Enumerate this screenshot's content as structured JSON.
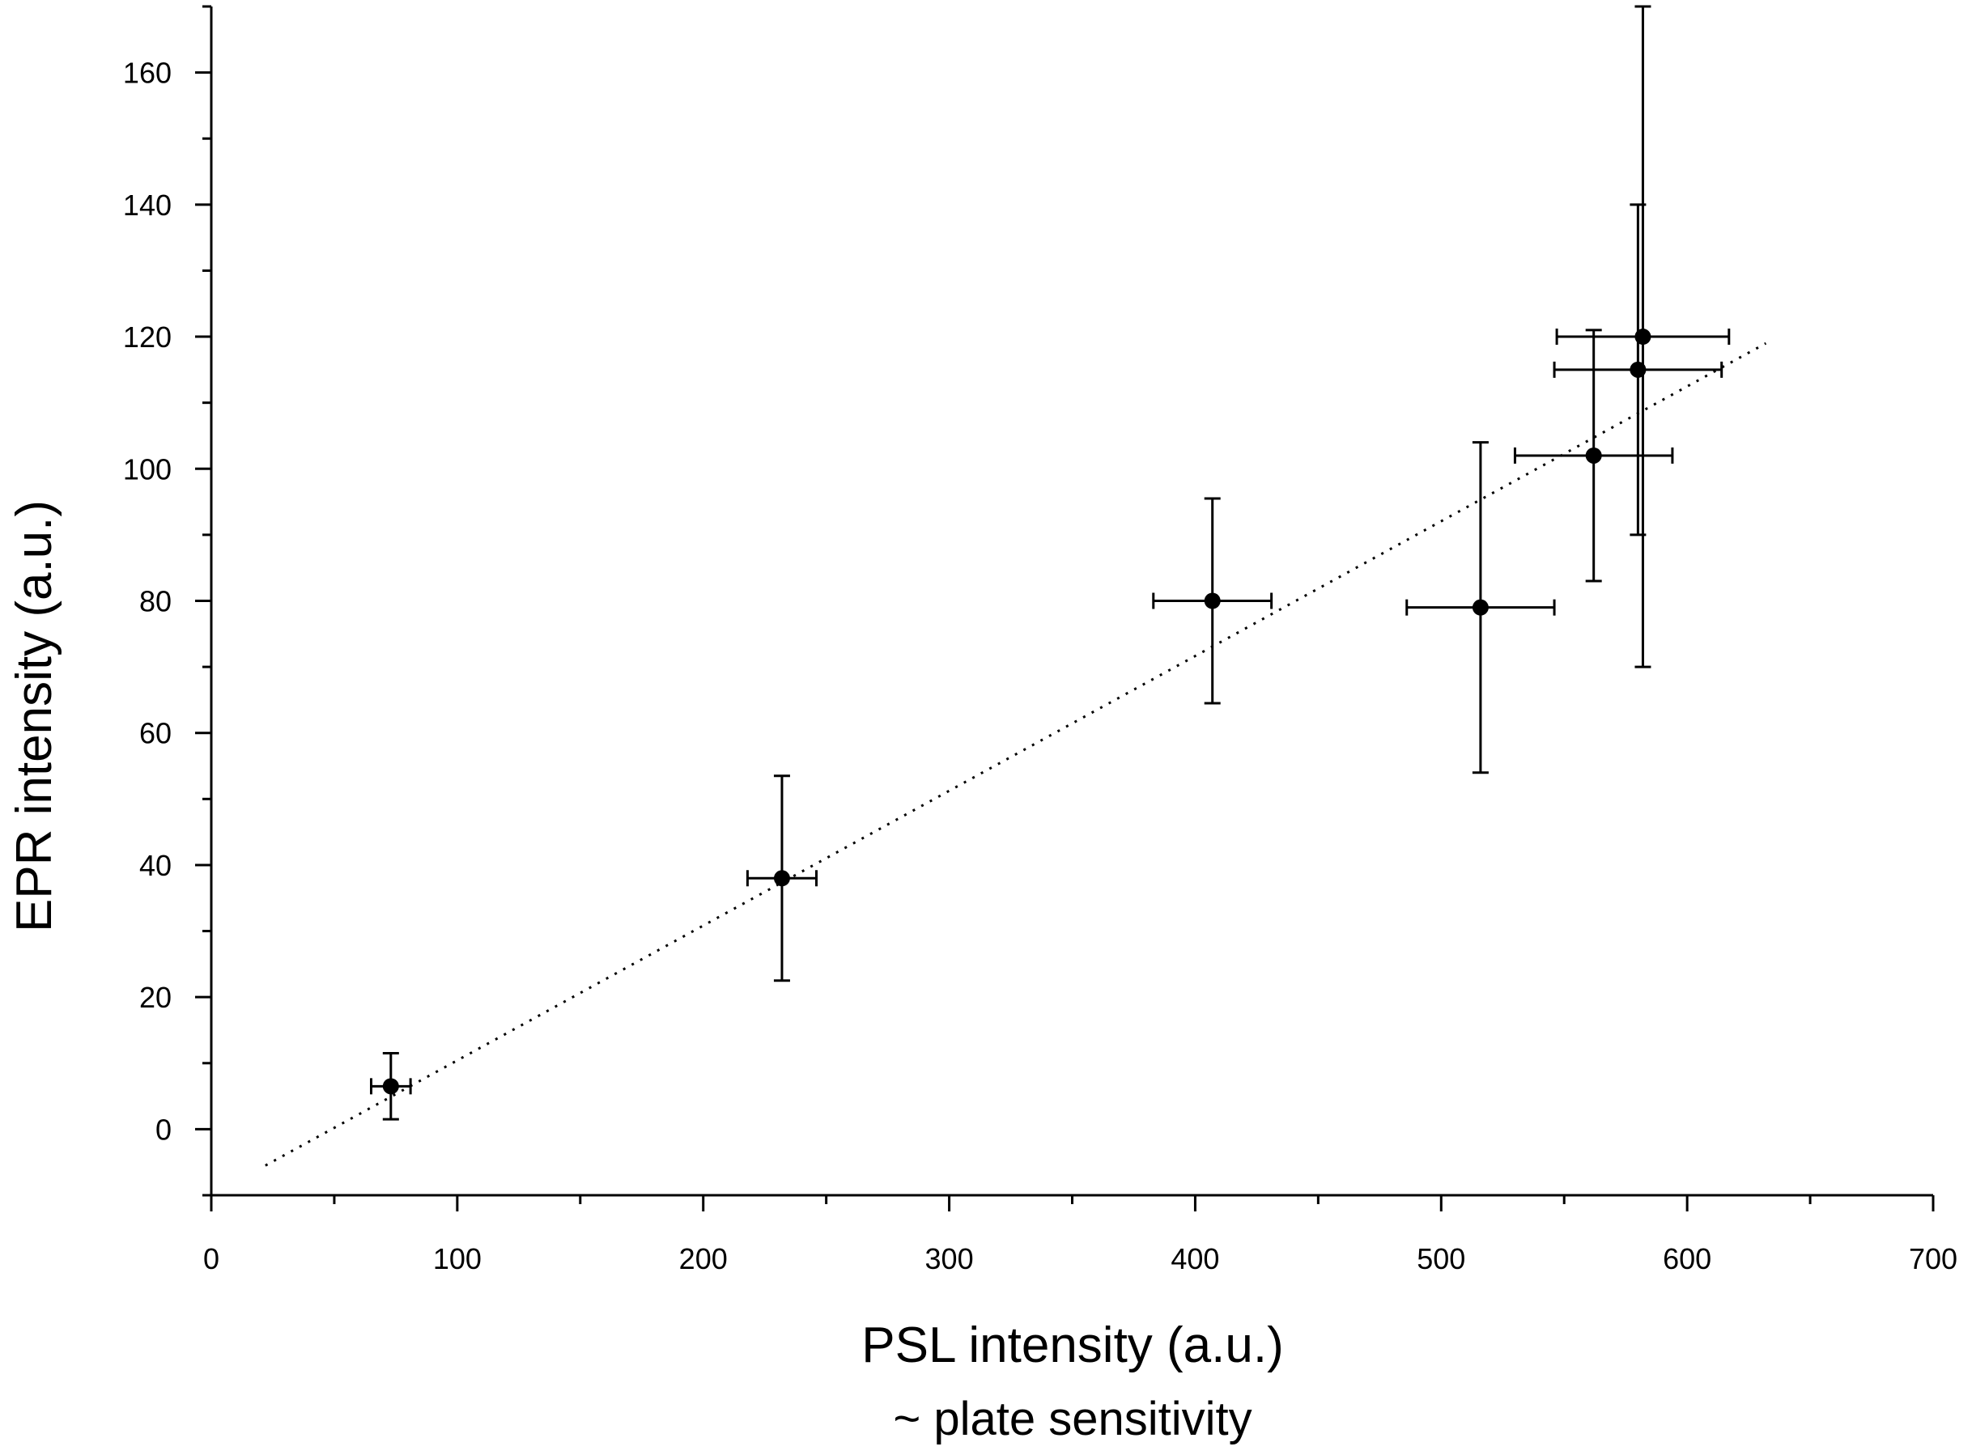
{
  "chart_data": {
    "type": "scatter",
    "title": "",
    "xlabel": "PSL intensity (a.u.)",
    "xlabel_sub": "~ plate sensitivity",
    "ylabel": "EPR intensity (a.u.)",
    "xlim": [
      0,
      700
    ],
    "ylim": [
      -10,
      170
    ],
    "x_ticks": [
      0,
      100,
      200,
      300,
      400,
      500,
      600,
      700
    ],
    "x_tick_labels": [
      "0",
      "100",
      "200",
      "300",
      "400",
      "500",
      "600",
      "700"
    ],
    "x_minor_ticks": [
      50,
      150,
      250,
      350,
      450,
      550,
      650
    ],
    "y_ticks": [
      0,
      20,
      40,
      60,
      80,
      100,
      120,
      140,
      160
    ],
    "y_tick_labels": [
      "0",
      "20",
      "40",
      "60",
      "80",
      "100",
      "120",
      "140",
      "160"
    ],
    "y_minor_ticks": [
      -10,
      10,
      30,
      50,
      70,
      90,
      110,
      130,
      150,
      170
    ],
    "grid": false,
    "legend": "none",
    "points": [
      {
        "x": 73,
        "y": 6.5,
        "xerr": 8,
        "yerr": 5
      },
      {
        "x": 232,
        "y": 38,
        "xerr": 14,
        "yerr": 15.5
      },
      {
        "x": 407,
        "y": 80,
        "xerr": 24,
        "yerr": 15.5
      },
      {
        "x": 516,
        "y": 79,
        "xerr": 30,
        "yerr": 25
      },
      {
        "x": 562,
        "y": 102,
        "xerr": 32,
        "yerr": 19
      },
      {
        "x": 580,
        "y": 115,
        "xerr": 34,
        "yerr": 25
      },
      {
        "x": 582,
        "y": 120,
        "xerr": 35,
        "yerr": 50
      }
    ],
    "fit_line": {
      "style": "dotted",
      "x": [
        22,
        632
      ],
      "y": [
        -5.5,
        119
      ]
    },
    "colors": {
      "marker": "#000000",
      "axis": "#000000",
      "fit": "#000000"
    }
  }
}
